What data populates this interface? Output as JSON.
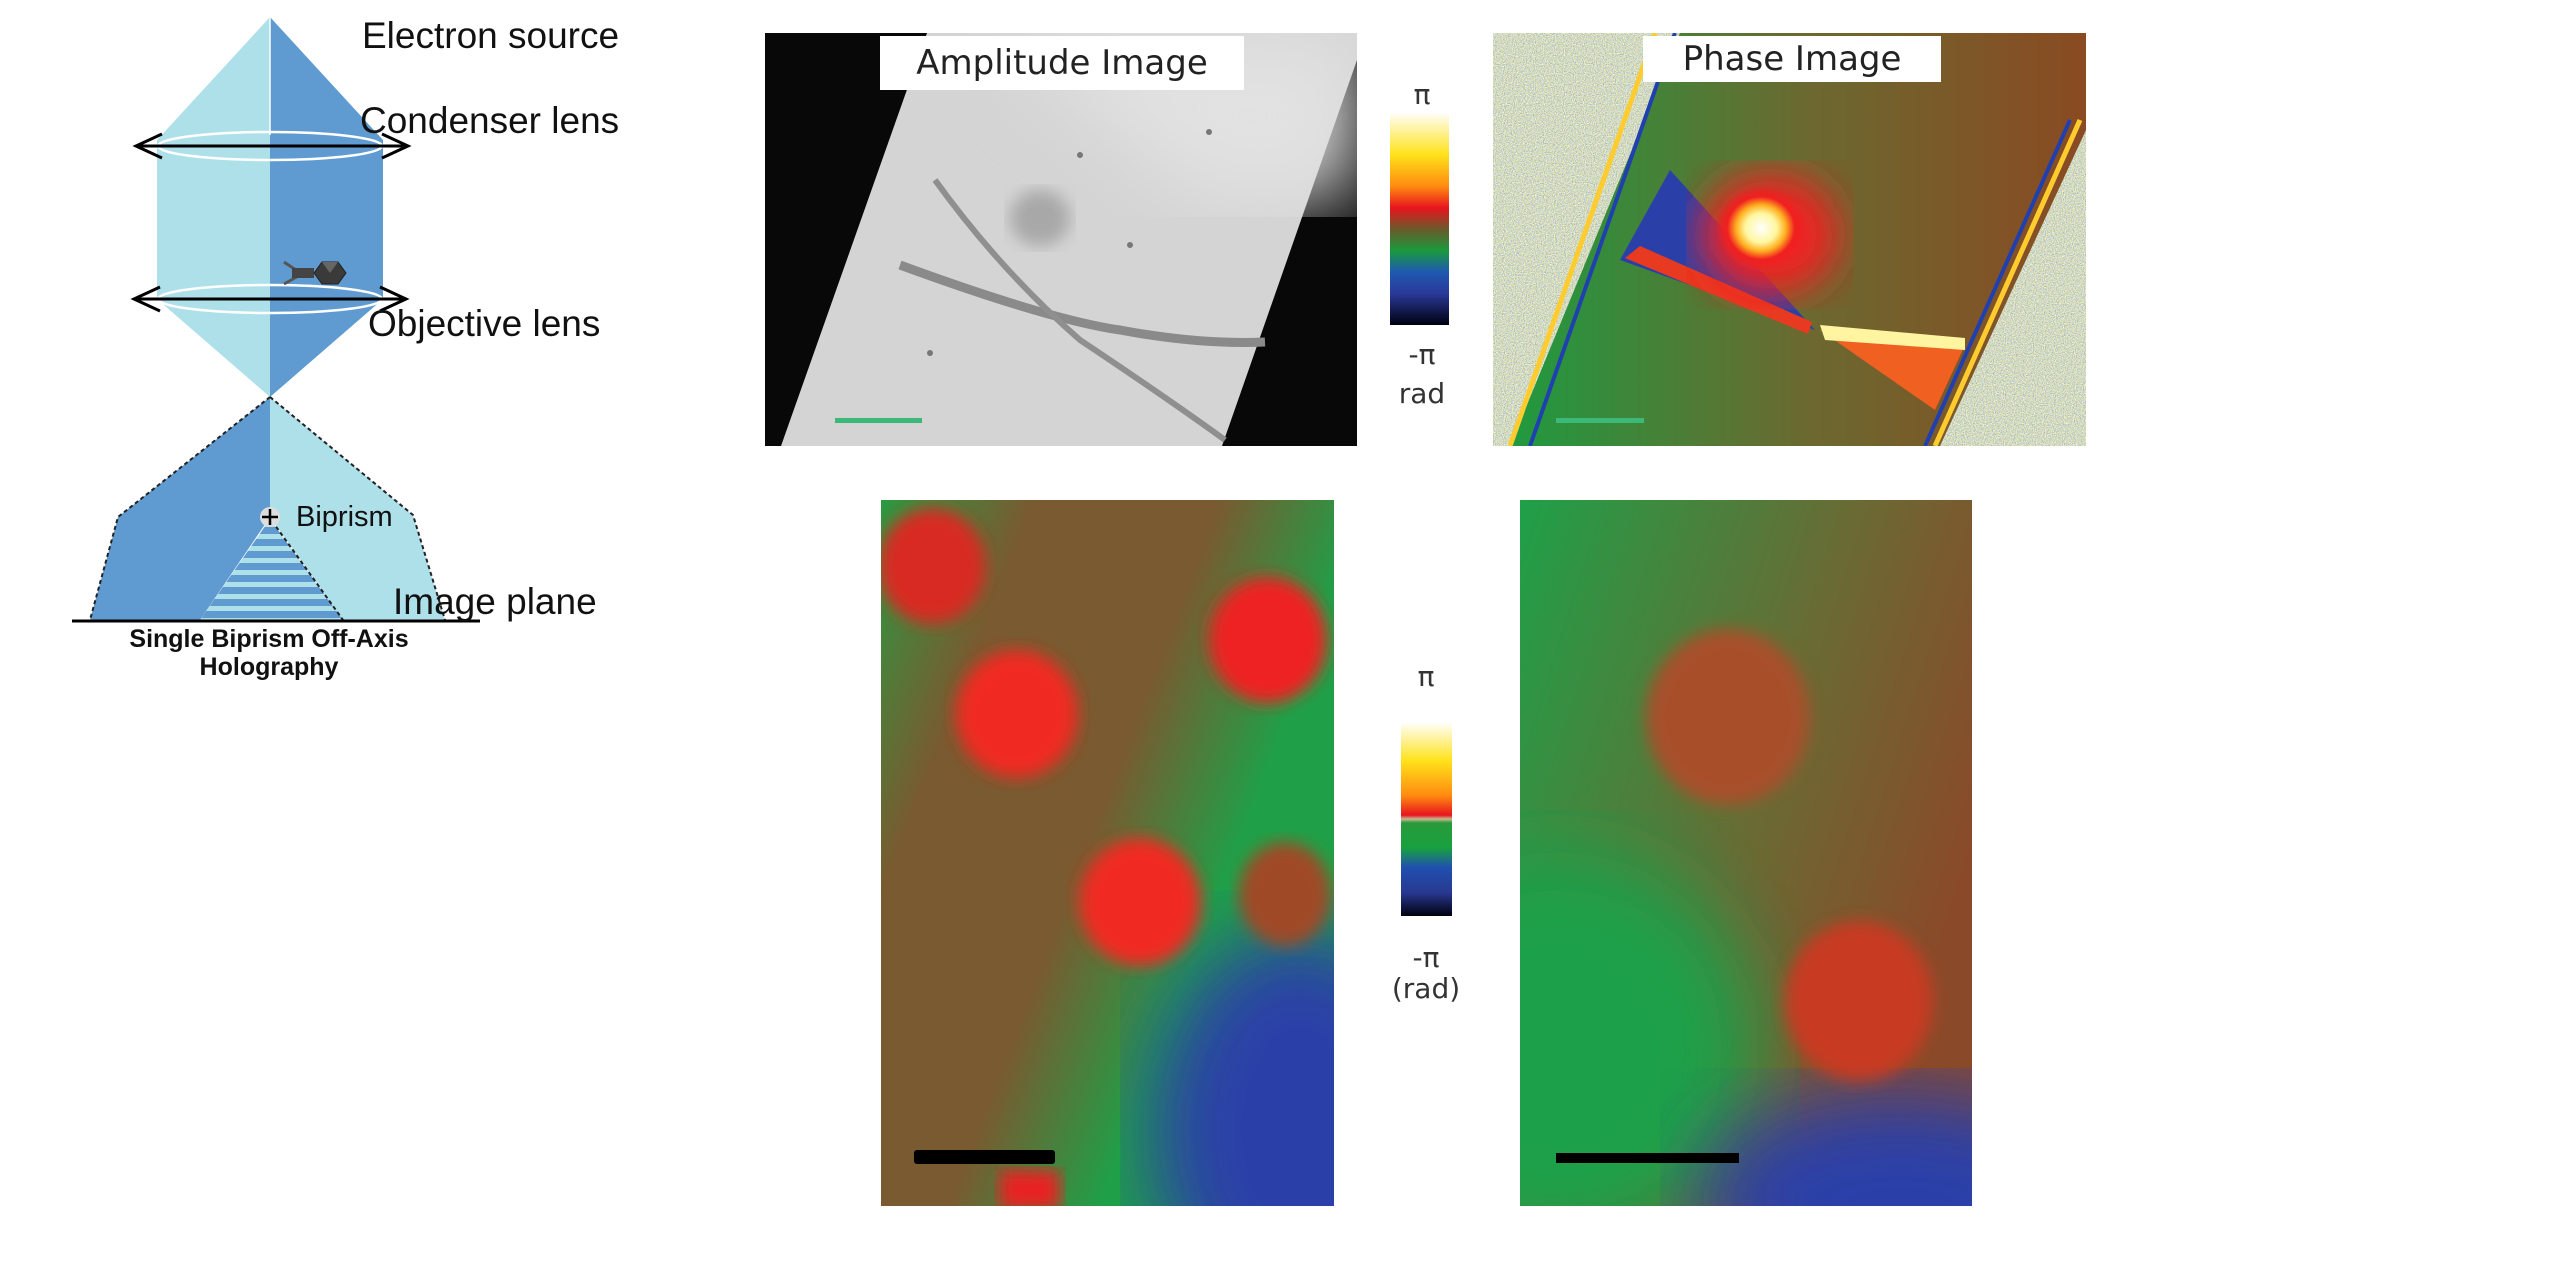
{
  "diagram": {
    "labels": {
      "electron_source": "Electron source",
      "condenser_lens": "Condenser lens",
      "objective_lens": "Objective lens",
      "biprism": "Biprism",
      "image_plane": "Image plane"
    },
    "caption_line1": "Single Biprism Off-Axis",
    "caption_line2": "Holography",
    "colors": {
      "beam_light": "#aee0ea",
      "beam_dark": "#5f9bd1"
    }
  },
  "top_panels": {
    "amplitude_title": "Amplitude Image",
    "phase_title": "Phase Image",
    "colorbar": {
      "max_label": "π",
      "min_label": "-π",
      "unit": "rad"
    },
    "scale_bar_color": "#3cb878"
  },
  "bottom_panels": {
    "colorbar": {
      "max_label": "π",
      "min_label": "-π",
      "unit": "(rad)"
    },
    "scale_bar_color": "#000000"
  }
}
